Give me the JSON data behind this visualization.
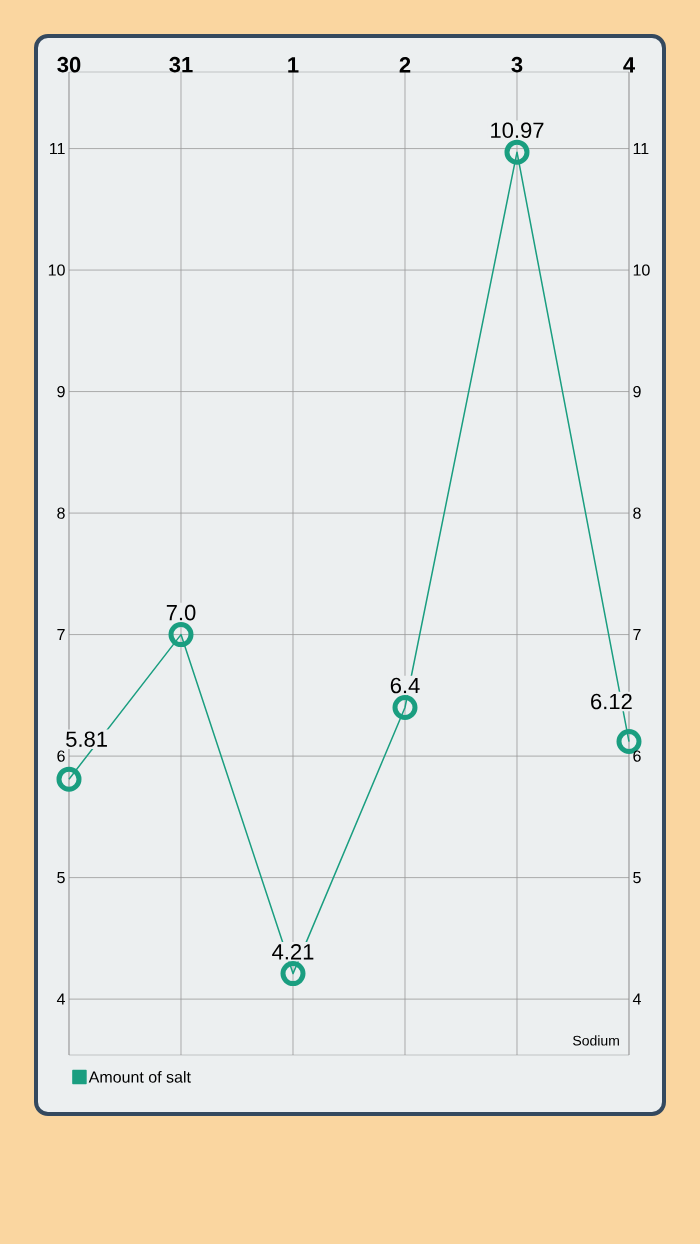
{
  "chart_data": {
    "type": "line",
    "categories": [
      "30",
      "31",
      "1",
      "2",
      "3",
      "4"
    ],
    "series": [
      {
        "name": "Amount of salt",
        "color": "#1a9e80",
        "values": [
          5.81,
          7.0,
          4.21,
          6.4,
          10.97,
          6.12
        ],
        "value_labels": [
          "5.81",
          "7.0",
          "4.21",
          "6.4",
          "10.97",
          "6.12"
        ]
      }
    ],
    "ylim": [
      3.54,
      11.63
    ],
    "yticks": [
      4,
      5,
      6,
      7,
      8,
      9,
      10,
      11
    ],
    "y2lim": [
      3.54,
      11.63
    ],
    "y2ticks": [
      4,
      5,
      6,
      7,
      8,
      9,
      10,
      11
    ],
    "grid": true,
    "legend": "bottom left",
    "marker": "circle",
    "annotations": [
      "Sodium"
    ]
  }
}
